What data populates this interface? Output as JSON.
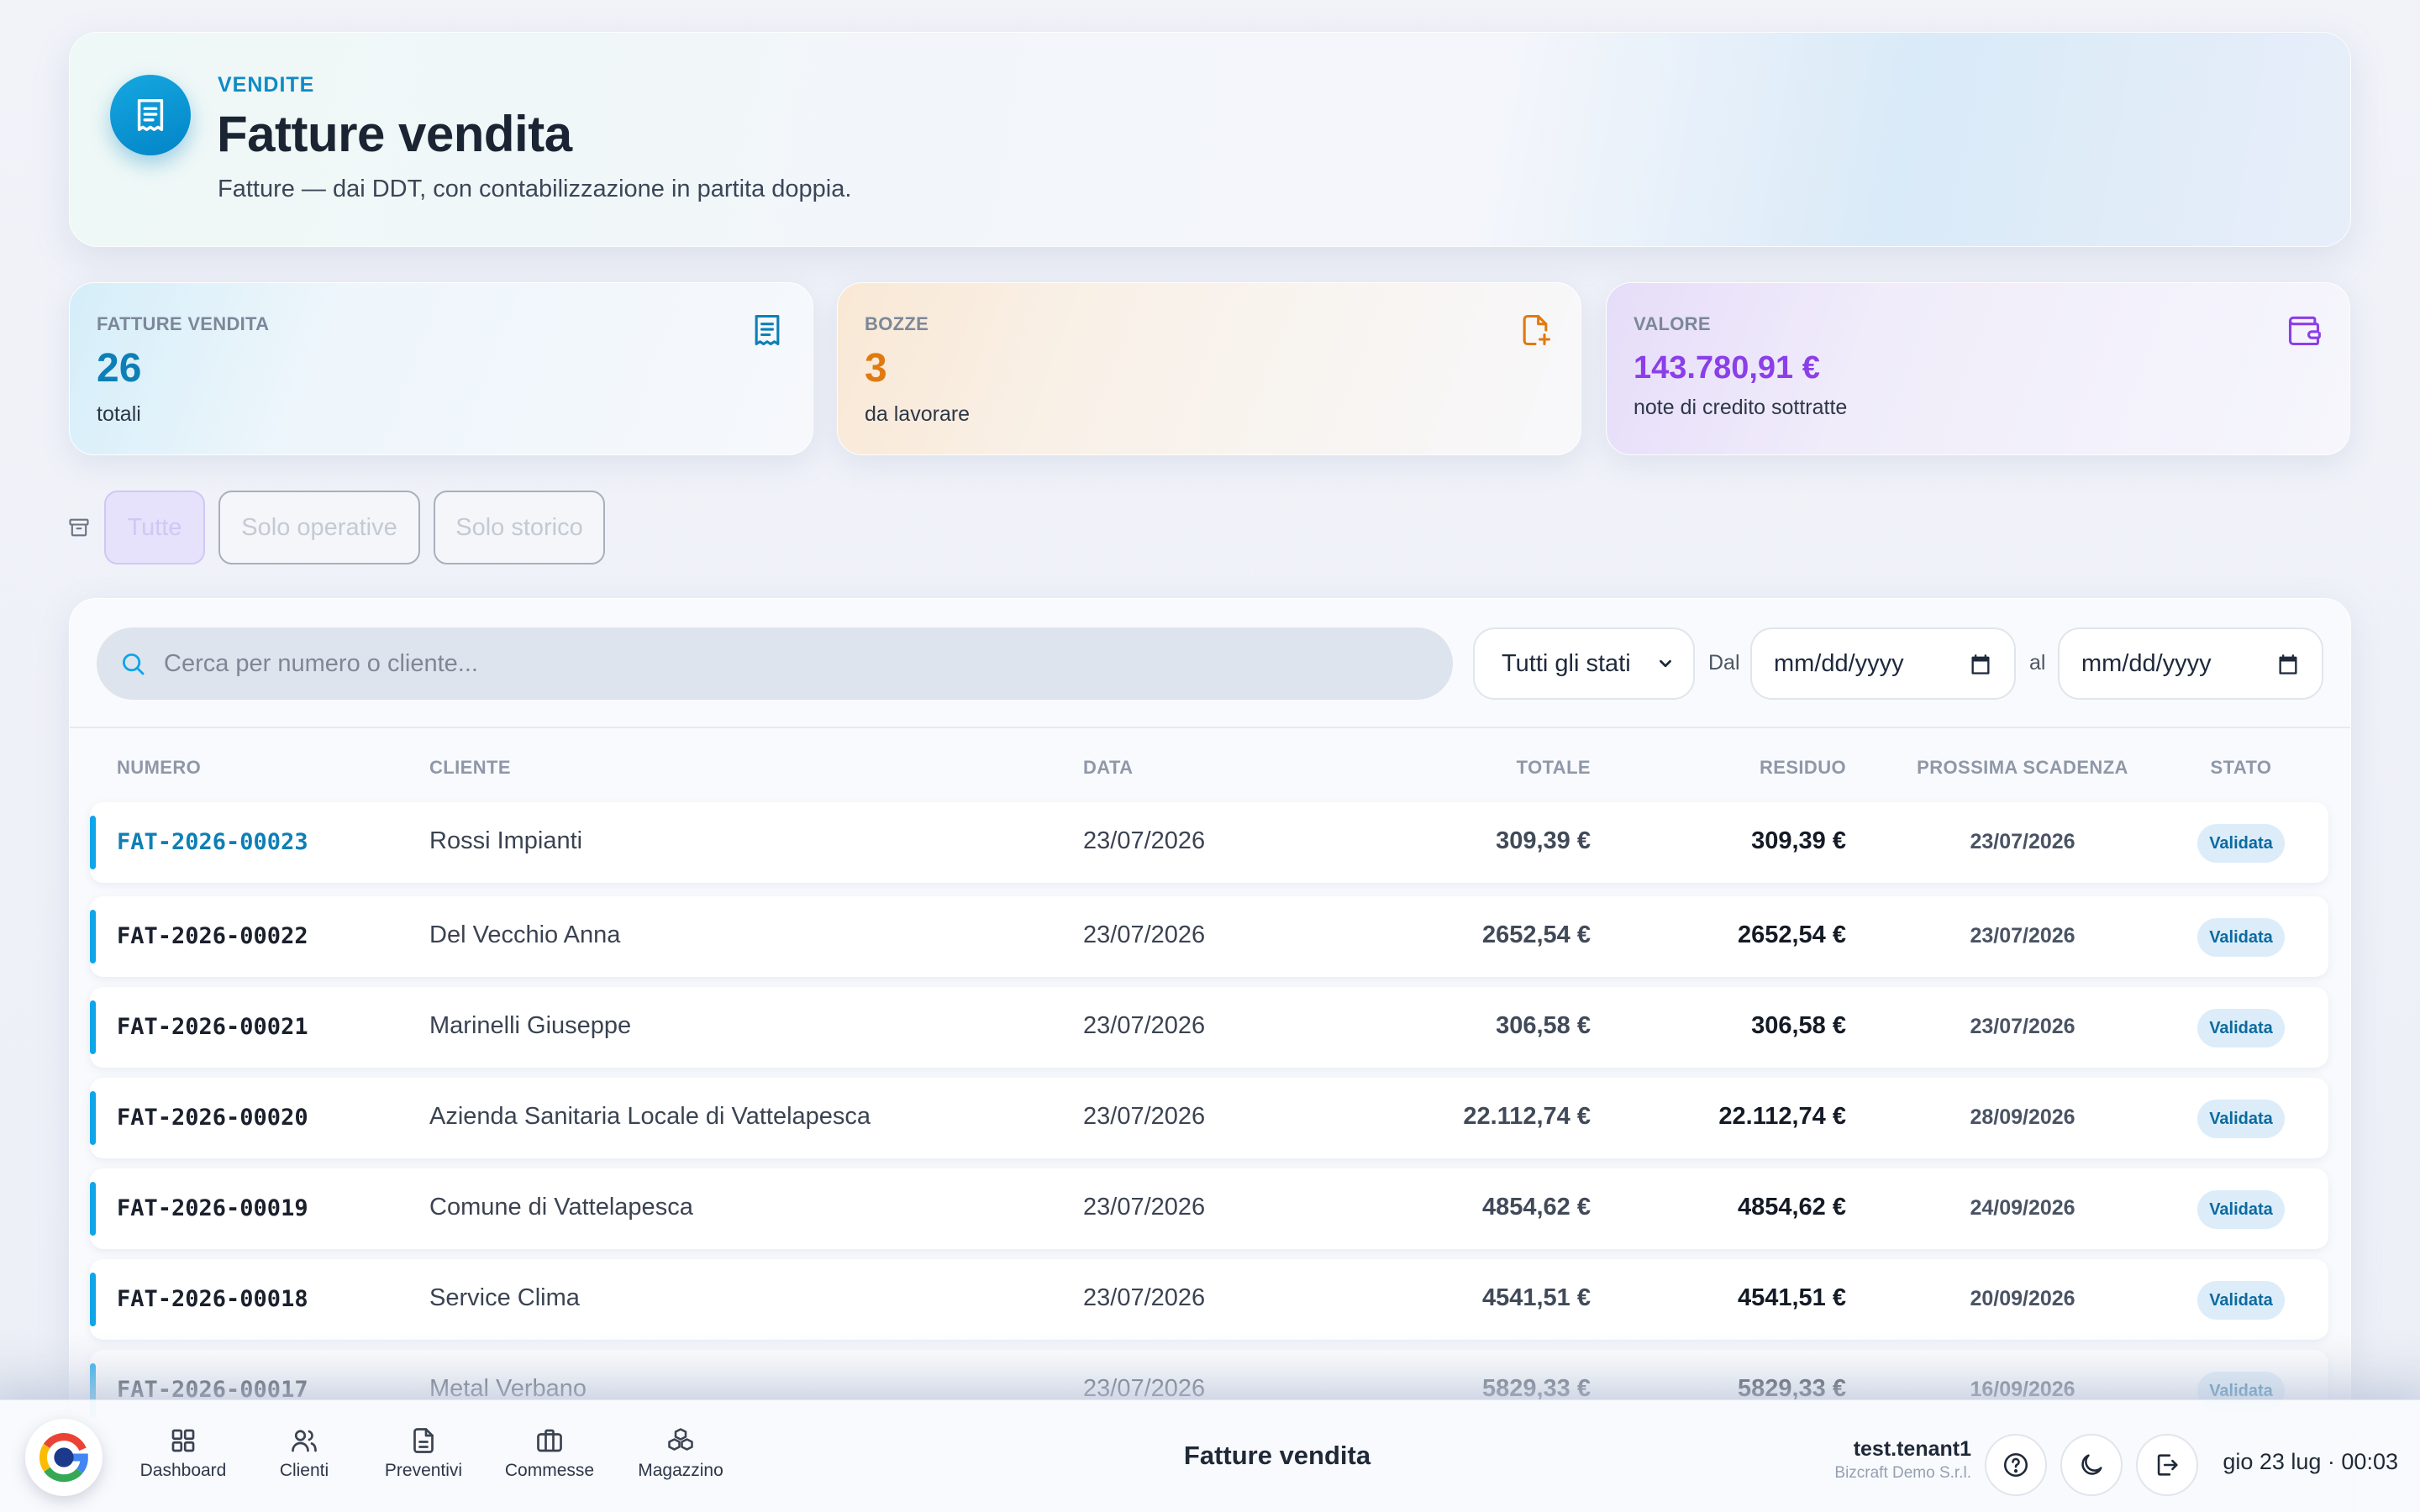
{
  "header": {
    "kicker": "VENDITE",
    "title": "Fatture vendita",
    "subtitle": "Fatture — dai DDT, con contabilizzazione in partita doppia.",
    "icon": "receipt-icon",
    "accent": "#0284c7"
  },
  "stats": [
    {
      "label": "FATTURE VENDITA",
      "value": "26",
      "note": "totali",
      "icon": "receipt-icon",
      "color": "#0e7fb6"
    },
    {
      "label": "BOZZE",
      "value": "3",
      "note": "da lavorare",
      "icon": "file-plus-icon",
      "color": "#e07a10"
    },
    {
      "label": "VALORE",
      "value": "143.780,91 €",
      "note": "note di credito sottratte",
      "icon": "wallet-icon",
      "color": "#8b3fe8"
    }
  ],
  "filters": {
    "icon": "archive-icon",
    "chips": [
      "Tutte",
      "Solo operative",
      "Solo storico"
    ],
    "active": "Tutte"
  },
  "toolbar": {
    "search_placeholder": "Cerca per numero o cliente...",
    "status_select": "Tutti gli stati",
    "from_label": "Dal",
    "to_label": "al",
    "date_placeholder": "mm/dd/yyyy"
  },
  "table": {
    "columns": [
      "NUMERO",
      "CLIENTE",
      "DATA",
      "TOTALE",
      "RESIDUO",
      "PROSSIMA SCADENZA",
      "STATO"
    ],
    "rows": [
      {
        "numero": "FAT-2026-00023",
        "cliente": "Rossi Impianti",
        "data": "23/07/2026",
        "totale": "309,39 €",
        "residuo": "309,39 €",
        "scadenza": "23/07/2026",
        "stato": "Validata"
      },
      {
        "numero": "FAT-2026-00022",
        "cliente": "Del Vecchio Anna",
        "data": "23/07/2026",
        "totale": "2652,54 €",
        "residuo": "2652,54 €",
        "scadenza": "23/07/2026",
        "stato": "Validata"
      },
      {
        "numero": "FAT-2026-00021",
        "cliente": "Marinelli Giuseppe",
        "data": "23/07/2026",
        "totale": "306,58 €",
        "residuo": "306,58 €",
        "scadenza": "23/07/2026",
        "stato": "Validata"
      },
      {
        "numero": "FAT-2026-00020",
        "cliente": "Azienda Sanitaria Locale di Vattelapesca",
        "data": "23/07/2026",
        "totale": "22.112,74 €",
        "residuo": "22.112,74 €",
        "scadenza": "28/09/2026",
        "stato": "Validata"
      },
      {
        "numero": "FAT-2026-00019",
        "cliente": "Comune di Vattelapesca",
        "data": "23/07/2026",
        "totale": "4854,62 €",
        "residuo": "4854,62 €",
        "scadenza": "24/09/2026",
        "stato": "Validata"
      },
      {
        "numero": "FAT-2026-00018",
        "cliente": "Service Clima",
        "data": "23/07/2026",
        "totale": "4541,51 €",
        "residuo": "4541,51 €",
        "scadenza": "20/09/2026",
        "stato": "Validata"
      },
      {
        "numero": "FAT-2026-00017",
        "cliente": "Metal Verbano",
        "data": "23/07/2026",
        "totale": "5829,33 €",
        "residuo": "5829,33 €",
        "scadenza": "16/09/2026",
        "stato": "Validata"
      }
    ]
  },
  "dock": {
    "nav": [
      {
        "label": "Dashboard",
        "icon": "grid-icon"
      },
      {
        "label": "Clienti",
        "icon": "users-icon"
      },
      {
        "label": "Preventivi",
        "icon": "document-icon"
      },
      {
        "label": "Commesse",
        "icon": "briefcase-icon"
      },
      {
        "label": "Magazzino",
        "icon": "boxes-icon"
      }
    ],
    "title": "Fatture vendita",
    "user": "test.tenant1",
    "org": "Bizcraft Demo S.r.l.",
    "clock": "gio 23 lug · 00:03"
  }
}
